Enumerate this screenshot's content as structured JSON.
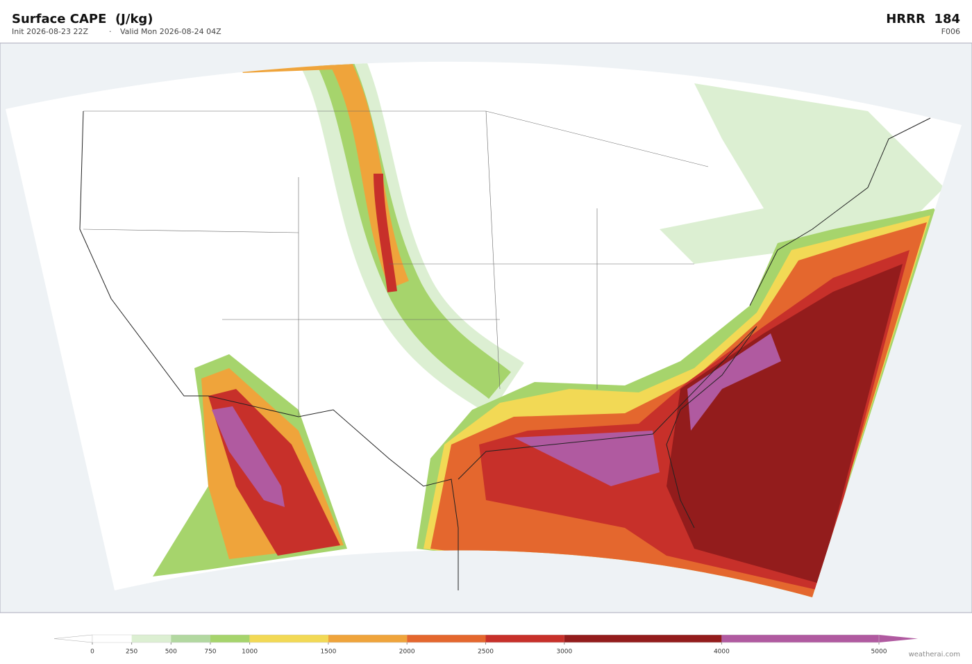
{
  "header": {
    "title": "Surface CAPE  (J/kg)",
    "init": "Init 2026-08-23 22Z",
    "separator": "·",
    "valid": "Valid Mon 2026-08-24 04Z",
    "model": "HRRR  184",
    "forecast_hour": "F006"
  },
  "colorbar": {
    "xlim": [
      0,
      5000
    ],
    "ticks": [
      0,
      250,
      500,
      750,
      1000,
      1500,
      2000,
      2500,
      3000,
      4000,
      5000
    ],
    "colors": [
      "#ffffff",
      "#dcefd2",
      "#b2d8a0",
      "#a6d46c",
      "#f2d955",
      "#efa43b",
      "#e4672e",
      "#c7302a",
      "#931c1c",
      "#b05aa0"
    ]
  },
  "footer": {
    "credit": "weatherai.com"
  }
}
